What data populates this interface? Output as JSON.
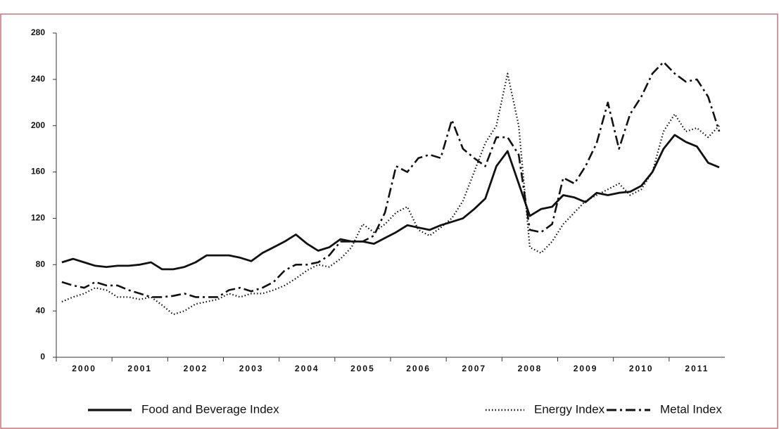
{
  "chart_data": {
    "type": "line",
    "categories": [
      null,
      null,
      "2000",
      null,
      null,
      null,
      null,
      "2001",
      null,
      null,
      null,
      null,
      "2002",
      null,
      null,
      null,
      null,
      "2003",
      null,
      null,
      null,
      null,
      "2004",
      null,
      null,
      null,
      null,
      "2005",
      null,
      null,
      null,
      null,
      "2006",
      null,
      null,
      null,
      null,
      "2007",
      null,
      null,
      null,
      null,
      "2008",
      null,
      null,
      null,
      null,
      "2009",
      null,
      null,
      null,
      null,
      "2010",
      null,
      null,
      null,
      null,
      "2011",
      null,
      null
    ],
    "series": [
      {
        "name": "Food and Beverage Index",
        "color": "#111111",
        "style": "solid",
        "values": [
          82,
          85,
          82,
          79,
          78,
          79,
          79,
          80,
          82,
          76,
          76,
          78,
          82,
          88,
          88,
          88,
          86,
          83,
          90,
          95,
          100,
          106,
          98,
          92,
          95,
          102,
          100,
          100,
          98,
          103,
          108,
          114,
          112,
          110,
          114,
          117,
          120,
          128,
          137,
          165,
          178,
          150,
          122,
          128,
          130,
          140,
          138,
          134,
          142,
          140,
          142,
          143,
          148,
          160,
          180,
          192,
          186,
          182,
          168,
          164
        ]
      },
      {
        "name": "Energy Index",
        "color": "#111111",
        "style": "dotted",
        "values": [
          48,
          52,
          55,
          60,
          58,
          52,
          52,
          50,
          52,
          45,
          37,
          40,
          46,
          48,
          50,
          55,
          52,
          55,
          55,
          58,
          62,
          68,
          75,
          80,
          78,
          85,
          95,
          115,
          108,
          115,
          125,
          130,
          110,
          105,
          112,
          120,
          135,
          160,
          185,
          200,
          245,
          200,
          95,
          90,
          100,
          115,
          125,
          135,
          140,
          145,
          150,
          140,
          145,
          160,
          195,
          210,
          195,
          198,
          190,
          200
        ]
      },
      {
        "name": "Metal Index",
        "color": "#111111",
        "style": "dashdot",
        "values": [
          65,
          62,
          60,
          65,
          62,
          62,
          58,
          55,
          52,
          52,
          53,
          55,
          52,
          52,
          52,
          58,
          60,
          57,
          60,
          65,
          75,
          80,
          80,
          82,
          88,
          100,
          100,
          100,
          105,
          125,
          165,
          160,
          172,
          175,
          172,
          205,
          180,
          172,
          165,
          190,
          190,
          175,
          110,
          108,
          115,
          155,
          150,
          165,
          185,
          220,
          180,
          210,
          225,
          245,
          255,
          245,
          238,
          240,
          225,
          195
        ]
      }
    ],
    "ylim": [
      0,
      280
    ],
    "yticks": [
      0,
      40,
      80,
      120,
      160,
      200,
      240,
      280
    ],
    "grid": false,
    "legend": "bottom"
  }
}
